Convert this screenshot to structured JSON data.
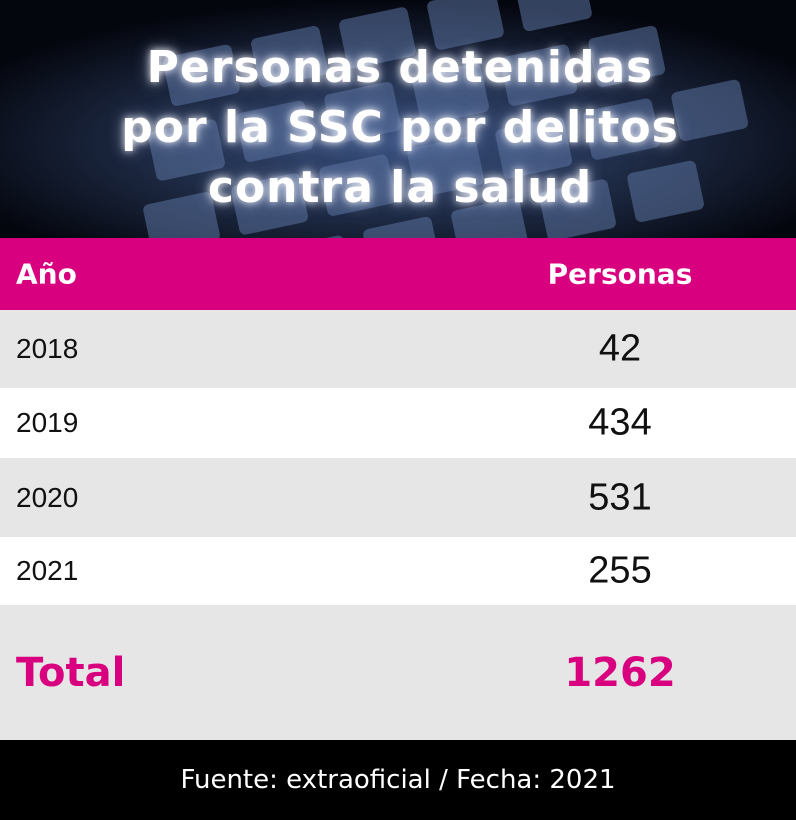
{
  "header": {
    "title": "Personas detenidas por la SSC por delitos contra la salud"
  },
  "table": {
    "columns": [
      "Año",
      "Personas"
    ],
    "rows": [
      [
        "2018",
        42
      ],
      [
        "2019",
        434
      ],
      [
        "2020",
        531
      ],
      [
        "2021",
        255
      ]
    ],
    "total": [
      "Total",
      1262
    ]
  },
  "footer": {
    "source": "Fuente: extraoficial / Fecha: 2021"
  }
}
